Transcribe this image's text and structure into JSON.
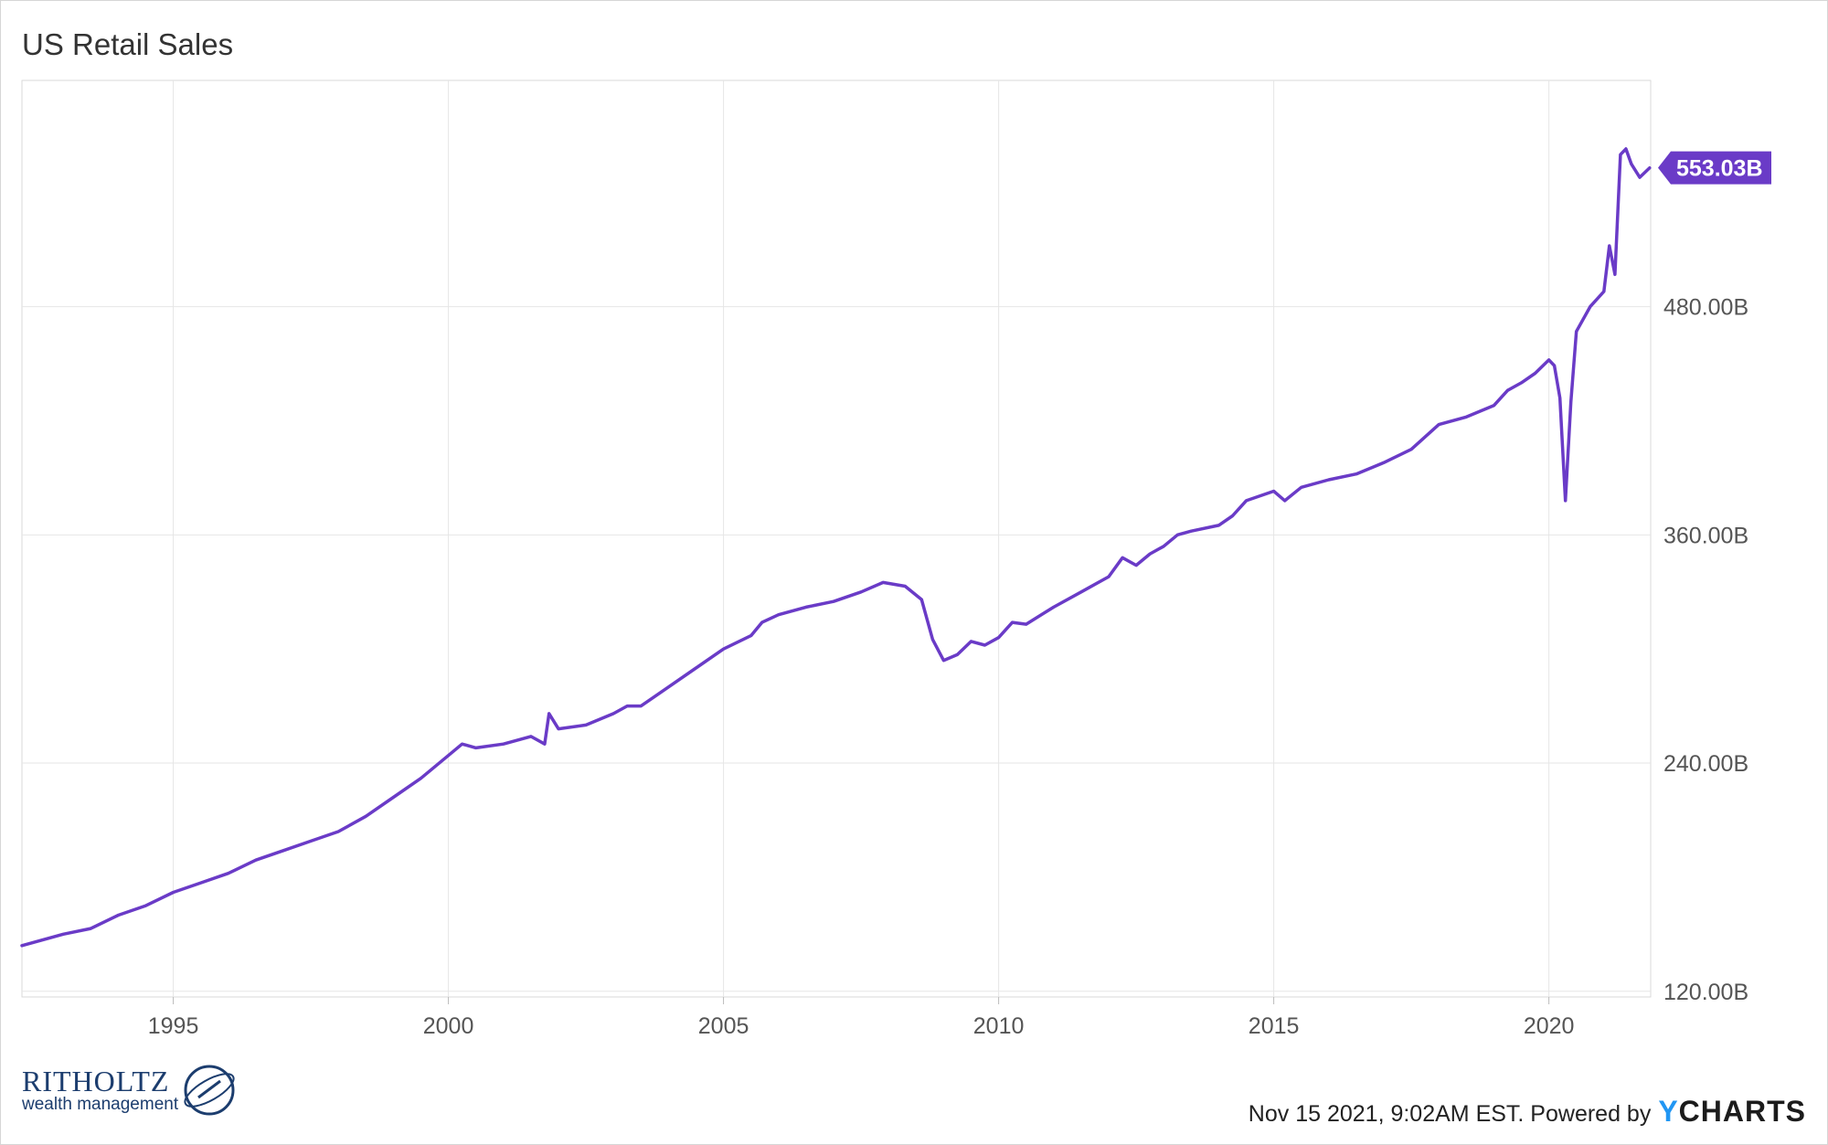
{
  "header": {
    "title": "US Retail Sales"
  },
  "footer": {
    "timestamp": "Nov 15 2021, 9:02AM EST. Powered by",
    "logo_y": "Y",
    "logo_rest": "CHARTS"
  },
  "brand": {
    "name": "RITHOLTZ",
    "subtitle": "wealth management"
  },
  "colors": {
    "series": "#6a3bc7",
    "grid": "#e6e6e6",
    "text": "#555555"
  },
  "chart_data": {
    "type": "line",
    "title": "US Retail Sales",
    "xlim": [
      1992.25,
      2021.85
    ],
    "ylim": [
      117,
      599
    ],
    "x_ticks": [
      {
        "value": 1995,
        "label": "1995"
      },
      {
        "value": 2000,
        "label": "2000"
      },
      {
        "value": 2005,
        "label": "2005"
      },
      {
        "value": 2010,
        "label": "2010"
      },
      {
        "value": 2015,
        "label": "2015"
      },
      {
        "value": 2020,
        "label": "2020"
      }
    ],
    "y_ticks": [
      {
        "value": 120,
        "label": "120.00B"
      },
      {
        "value": 240,
        "label": "240.00B"
      },
      {
        "value": 360,
        "label": "360.00B"
      },
      {
        "value": 480,
        "label": "480.00B"
      }
    ],
    "grid": true,
    "last_value_label": "553.03B",
    "last_value": 553.03,
    "series": [
      {
        "points": [
          [
            1992.25,
            144
          ],
          [
            1993.0,
            150
          ],
          [
            1993.5,
            153
          ],
          [
            1994.0,
            160
          ],
          [
            1994.5,
            165
          ],
          [
            1995.0,
            172
          ],
          [
            1995.5,
            177
          ],
          [
            1996.0,
            182
          ],
          [
            1996.5,
            189
          ],
          [
            1997.0,
            194
          ],
          [
            1997.5,
            199
          ],
          [
            1998.0,
            204
          ],
          [
            1998.5,
            212
          ],
          [
            1999.0,
            222
          ],
          [
            1999.5,
            232
          ],
          [
            2000.0,
            244
          ],
          [
            2000.25,
            250
          ],
          [
            2000.5,
            248
          ],
          [
            2001.0,
            250
          ],
          [
            2001.5,
            254
          ],
          [
            2001.75,
            250
          ],
          [
            2001.83,
            266
          ],
          [
            2002.0,
            258
          ],
          [
            2002.5,
            260
          ],
          [
            2003.0,
            266
          ],
          [
            2003.25,
            270
          ],
          [
            2003.5,
            270
          ],
          [
            2004.0,
            280
          ],
          [
            2004.5,
            290
          ],
          [
            2005.0,
            300
          ],
          [
            2005.5,
            307
          ],
          [
            2005.7,
            314
          ],
          [
            2006.0,
            318
          ],
          [
            2006.5,
            322
          ],
          [
            2007.0,
            325
          ],
          [
            2007.5,
            330
          ],
          [
            2007.9,
            335
          ],
          [
            2008.3,
            333
          ],
          [
            2008.6,
            326
          ],
          [
            2008.8,
            305
          ],
          [
            2009.0,
            294
          ],
          [
            2009.25,
            297
          ],
          [
            2009.5,
            304
          ],
          [
            2009.75,
            302
          ],
          [
            2010.0,
            306
          ],
          [
            2010.25,
            314
          ],
          [
            2010.5,
            313
          ],
          [
            2011.0,
            322
          ],
          [
            2011.5,
            330
          ],
          [
            2012.0,
            338
          ],
          [
            2012.25,
            348
          ],
          [
            2012.5,
            344
          ],
          [
            2012.75,
            350
          ],
          [
            2013.0,
            354
          ],
          [
            2013.25,
            360
          ],
          [
            2013.5,
            362
          ],
          [
            2014.0,
            365
          ],
          [
            2014.25,
            370
          ],
          [
            2014.5,
            378
          ],
          [
            2015.0,
            383
          ],
          [
            2015.2,
            378
          ],
          [
            2015.5,
            385
          ],
          [
            2016.0,
            389
          ],
          [
            2016.5,
            392
          ],
          [
            2017.0,
            398
          ],
          [
            2017.5,
            405
          ],
          [
            2018.0,
            418
          ],
          [
            2018.5,
            422
          ],
          [
            2019.0,
            428
          ],
          [
            2019.25,
            436
          ],
          [
            2019.5,
            440
          ],
          [
            2019.75,
            445
          ],
          [
            2020.0,
            452
          ],
          [
            2020.1,
            449
          ],
          [
            2020.2,
            432
          ],
          [
            2020.3,
            378
          ],
          [
            2020.4,
            430
          ],
          [
            2020.5,
            467
          ],
          [
            2020.75,
            480
          ],
          [
            2021.0,
            488
          ],
          [
            2021.1,
            512
          ],
          [
            2021.2,
            497
          ],
          [
            2021.3,
            560
          ],
          [
            2021.4,
            563
          ],
          [
            2021.5,
            555
          ],
          [
            2021.65,
            548
          ],
          [
            2021.83,
            553.03
          ]
        ]
      }
    ]
  }
}
